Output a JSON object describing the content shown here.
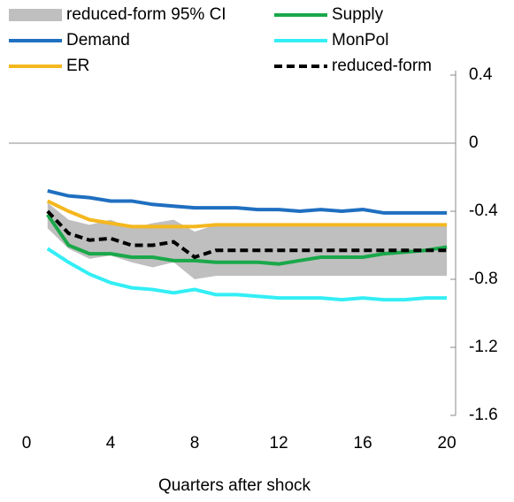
{
  "chart_data": {
    "type": "line",
    "xlabel": "Quarters after shock",
    "x": [
      1,
      2,
      3,
      4,
      5,
      6,
      7,
      8,
      9,
      10,
      11,
      12,
      13,
      14,
      15,
      16,
      17,
      18,
      19,
      20
    ],
    "xlim": [
      -0.8,
      20.5
    ],
    "xticks": [
      0,
      4,
      8,
      12,
      16,
      20
    ],
    "ylim": [
      -1.6,
      0.4
    ],
    "yticks": [
      0.4,
      0,
      -0.4,
      -0.8,
      -1.2,
      -1.6
    ],
    "band": {
      "name": "reduced-form 95% CI",
      "color": "#bfbfbf",
      "upper": [
        -0.35,
        -0.45,
        -0.48,
        -0.45,
        -0.5,
        -0.47,
        -0.45,
        -0.52,
        -0.48,
        -0.48,
        -0.48,
        -0.48,
        -0.48,
        -0.48,
        -0.48,
        -0.48,
        -0.48,
        -0.48,
        -0.48,
        -0.48
      ],
      "lower": [
        -0.5,
        -0.62,
        -0.68,
        -0.66,
        -0.7,
        -0.73,
        -0.7,
        -0.8,
        -0.78,
        -0.78,
        -0.78,
        -0.78,
        -0.78,
        -0.78,
        -0.78,
        -0.78,
        -0.78,
        -0.78,
        -0.78,
        -0.78
      ]
    },
    "series": [
      {
        "name": "Supply",
        "color": "#1aa84a",
        "values": [
          -0.42,
          -0.6,
          -0.65,
          -0.65,
          -0.67,
          -0.67,
          -0.69,
          -0.69,
          -0.7,
          -0.7,
          -0.7,
          -0.71,
          -0.69,
          -0.67,
          -0.67,
          -0.67,
          -0.65,
          -0.64,
          -0.63,
          -0.61
        ]
      },
      {
        "name": "Demand",
        "color": "#1f6fc0",
        "values": [
          -0.28,
          -0.31,
          -0.32,
          -0.34,
          -0.34,
          -0.36,
          -0.37,
          -0.38,
          -0.38,
          -0.38,
          -0.39,
          -0.39,
          -0.4,
          -0.39,
          -0.4,
          -0.39,
          -0.41,
          -0.41,
          -0.41,
          -0.41
        ]
      },
      {
        "name": "MonPol",
        "color": "#33eef5",
        "values": [
          -0.62,
          -0.7,
          -0.77,
          -0.82,
          -0.85,
          -0.86,
          -0.88,
          -0.86,
          -0.89,
          -0.89,
          -0.9,
          -0.91,
          -0.91,
          -0.91,
          -0.92,
          -0.91,
          -0.92,
          -0.92,
          -0.91,
          -0.91
        ]
      },
      {
        "name": "ER",
        "color": "#f5b71e",
        "values": [
          -0.34,
          -0.4,
          -0.45,
          -0.47,
          -0.49,
          -0.49,
          -0.49,
          -0.49,
          -0.48,
          -0.48,
          -0.48,
          -0.48,
          -0.48,
          -0.48,
          -0.48,
          -0.48,
          -0.48,
          -0.48,
          -0.48,
          -0.48
        ]
      },
      {
        "name": "reduced-form",
        "color": "#000000",
        "dashed": true,
        "values": [
          -0.4,
          -0.53,
          -0.57,
          -0.56,
          -0.6,
          -0.6,
          -0.58,
          -0.67,
          -0.63,
          -0.63,
          -0.63,
          -0.63,
          -0.63,
          -0.63,
          -0.63,
          -0.63,
          -0.63,
          -0.63,
          -0.63,
          -0.63
        ]
      }
    ]
  }
}
